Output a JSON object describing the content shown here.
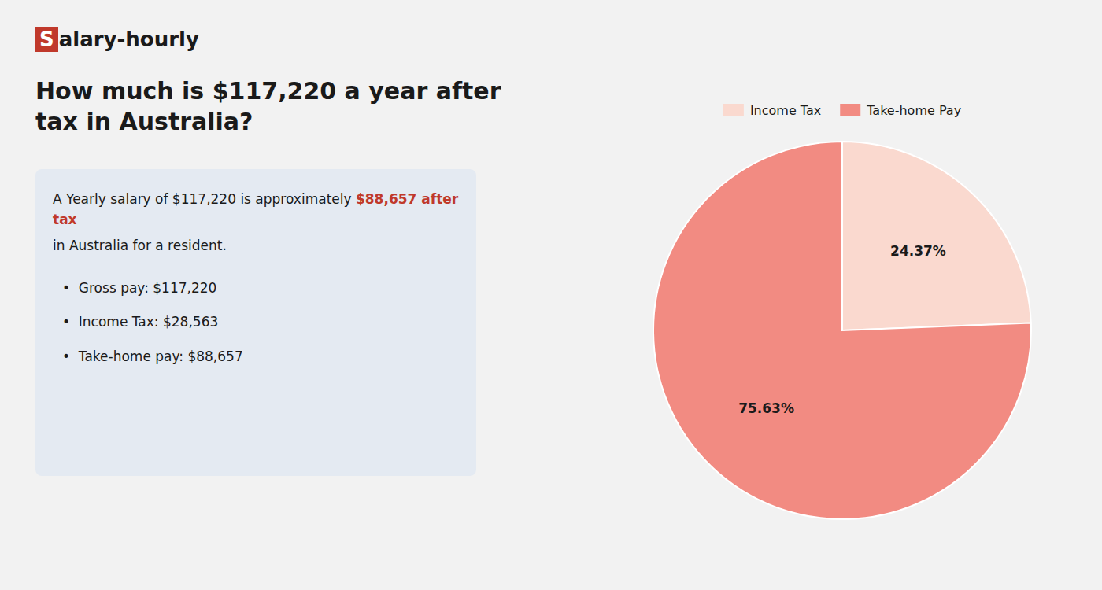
{
  "chart_data": {
    "type": "pie",
    "title": "How much is $117,220 a year after tax in Australia?",
    "categories": [
      "Income Tax",
      "Take-home Pay"
    ],
    "values": [
      24.37,
      75.63
    ],
    "value_labels": [
      "24.37%",
      "75.63%"
    ],
    "colors": [
      "#fad9cf",
      "#f28b82"
    ],
    "data_labels": true,
    "legend": "top",
    "annotations": [
      {
        "text": "S",
        "color": "#c0392b"
      },
      {
        "text": "alary-hourly"
      },
      {
        "text": "A Yearly salary of $117,220 is approximately "
      },
      {
        "text": "$88,657 after tax",
        "color": "#c0392b"
      },
      {
        "text": "in Australia for a resident."
      },
      {
        "text": "•  Gross pay: $117,220"
      },
      {
        "text": "•  Income Tax: $28,563"
      },
      {
        "text": "•  Take-home pay: $88,657"
      }
    ]
  }
}
